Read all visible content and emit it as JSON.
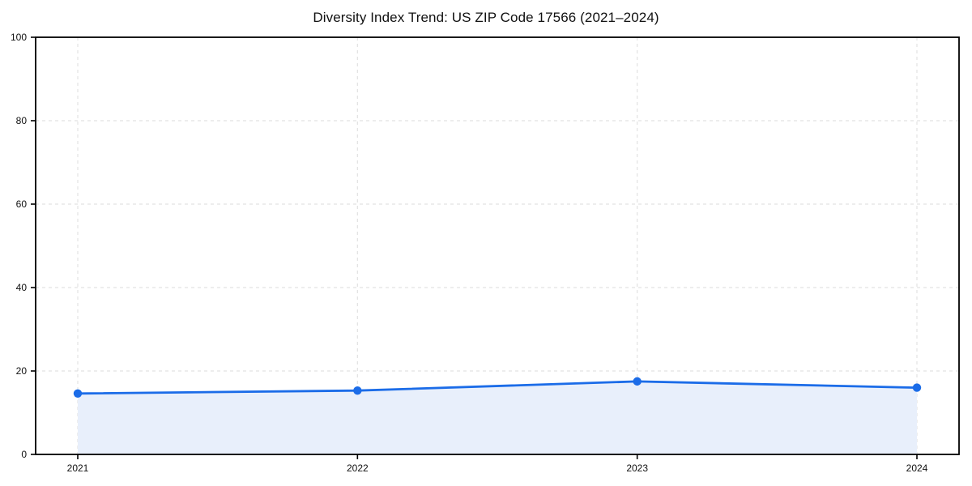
{
  "chart_data": {
    "type": "area",
    "title": "Diversity Index Trend: US ZIP Code 17566 (2021–2024)",
    "x": [
      "2021",
      "2022",
      "2023",
      "2024"
    ],
    "series": [
      {
        "name": "Diversity Index",
        "values": [
          14.6,
          15.3,
          17.5,
          16.0
        ]
      }
    ],
    "xlabel": "",
    "ylabel": "",
    "ylim": [
      0,
      100
    ],
    "yticks": [
      0,
      20,
      40,
      60,
      80,
      100
    ],
    "grid": "dashed-both-axes",
    "legend_position": "none",
    "colors": {
      "line": "#1b6ce8",
      "marker": "#1b6ce8",
      "fill": "#e8effb",
      "grid": "#e2e2e2",
      "axis": "#000000",
      "text": "#111111",
      "background": "#ffffff"
    }
  }
}
